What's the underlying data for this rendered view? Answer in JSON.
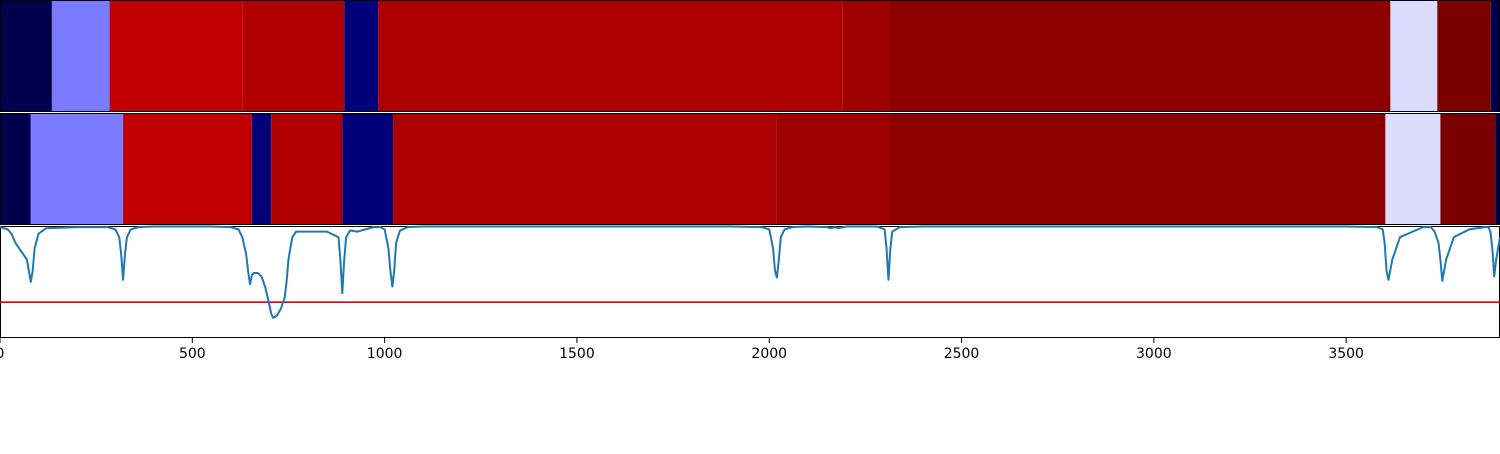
{
  "chart_data": {
    "type": "heatmap",
    "title": "",
    "xlabel": "",
    "ylabel": "",
    "xlim": [
      0,
      3900
    ],
    "x_ticks": [
      "0",
      "500",
      "1000",
      "1500",
      "2000",
      "2500",
      "3000",
      "3500"
    ],
    "x_tick_values": [
      0,
      500,
      1000,
      1500,
      2000,
      2500,
      3000,
      3500
    ],
    "grid": false,
    "legend": "none",
    "segment_rows": [
      {
        "segments": [
          {
            "start": 0,
            "end": 135,
            "color": "#00004c"
          },
          {
            "start": 135,
            "end": 285,
            "color": "#7b7bff"
          },
          {
            "start": 285,
            "end": 630,
            "color": "#c00000"
          },
          {
            "start": 630,
            "end": 895,
            "color": "#b00000"
          },
          {
            "start": 895,
            "end": 983,
            "color": "#00007a"
          },
          {
            "start": 983,
            "end": 2190,
            "color": "#ac0000"
          },
          {
            "start": 2190,
            "end": 2310,
            "color": "#9e0000"
          },
          {
            "start": 2310,
            "end": 3615,
            "color": "#8e0000"
          },
          {
            "start": 3615,
            "end": 3737,
            "color": "#dcdcff"
          },
          {
            "start": 3737,
            "end": 3876,
            "color": "#7a0000"
          },
          {
            "start": 3876,
            "end": 3900,
            "color": "#00004c"
          }
        ]
      },
      {
        "segments": [
          {
            "start": 0,
            "end": 80,
            "color": "#00004c"
          },
          {
            "start": 80,
            "end": 320,
            "color": "#7b7bff"
          },
          {
            "start": 320,
            "end": 655,
            "color": "#c00000"
          },
          {
            "start": 655,
            "end": 705,
            "color": "#00007a"
          },
          {
            "start": 705,
            "end": 890,
            "color": "#b00000"
          },
          {
            "start": 890,
            "end": 1022,
            "color": "#00007a"
          },
          {
            "start": 1022,
            "end": 2020,
            "color": "#ac0000"
          },
          {
            "start": 2020,
            "end": 2310,
            "color": "#9e0000"
          },
          {
            "start": 2310,
            "end": 3602,
            "color": "#8e0000"
          },
          {
            "start": 3602,
            "end": 3745,
            "color": "#dcdcff"
          },
          {
            "start": 3745,
            "end": 3888,
            "color": "#7a0000"
          },
          {
            "start": 3888,
            "end": 3900,
            "color": "#00004c"
          }
        ]
      }
    ],
    "line_panel": {
      "ylim": [
        0,
        1
      ],
      "series_color": "#1f77b4",
      "threshold": 0.32,
      "threshold_color": "#e00000",
      "x": [
        0,
        20,
        30,
        40,
        50,
        60,
        70,
        75,
        80,
        85,
        90,
        100,
        120,
        200,
        280,
        300,
        310,
        315,
        320,
        325,
        330,
        340,
        360,
        400,
        450,
        500,
        550,
        600,
        620,
        630,
        640,
        645,
        650,
        655,
        660,
        670,
        680,
        690,
        700,
        705,
        710,
        720,
        730,
        740,
        745,
        750,
        760,
        770,
        800,
        850,
        880,
        885,
        890,
        895,
        900,
        910,
        930,
        950,
        970,
        990,
        1000,
        1010,
        1015,
        1020,
        1025,
        1030,
        1040,
        1060,
        1100,
        1500,
        1900,
        1980,
        2000,
        2010,
        2015,
        2020,
        2025,
        2030,
        2040,
        2060,
        2100,
        2150,
        2160,
        2170,
        2180,
        2200,
        2280,
        2300,
        2305,
        2310,
        2315,
        2320,
        2340,
        2400,
        3000,
        3500,
        3580,
        3595,
        3600,
        3605,
        3610,
        3620,
        3640,
        3700,
        3720,
        3730,
        3740,
        3745,
        3750,
        3760,
        3780,
        3820,
        3860,
        3870,
        3875,
        3880,
        3885,
        3890,
        3900
      ],
      "y": [
        0.99,
        0.97,
        0.93,
        0.85,
        0.8,
        0.75,
        0.7,
        0.6,
        0.5,
        0.6,
        0.8,
        0.93,
        0.98,
        0.99,
        0.99,
        0.97,
        0.9,
        0.75,
        0.52,
        0.75,
        0.9,
        0.97,
        0.99,
        0.995,
        0.995,
        0.995,
        0.995,
        0.99,
        0.97,
        0.9,
        0.75,
        0.6,
        0.48,
        0.56,
        0.58,
        0.58,
        0.55,
        0.45,
        0.3,
        0.22,
        0.18,
        0.2,
        0.26,
        0.36,
        0.5,
        0.7,
        0.9,
        0.95,
        0.95,
        0.95,
        0.9,
        0.7,
        0.4,
        0.7,
        0.9,
        0.96,
        0.95,
        0.97,
        0.99,
        0.99,
        0.97,
        0.8,
        0.6,
        0.46,
        0.6,
        0.85,
        0.96,
        0.99,
        0.995,
        0.995,
        0.995,
        0.99,
        0.97,
        0.8,
        0.6,
        0.54,
        0.7,
        0.9,
        0.97,
        0.99,
        0.995,
        0.99,
        0.98,
        0.99,
        0.98,
        0.995,
        0.995,
        0.97,
        0.8,
        0.52,
        0.8,
        0.95,
        0.99,
        0.995,
        0.995,
        0.995,
        0.99,
        0.97,
        0.85,
        0.6,
        0.52,
        0.7,
        0.9,
        0.99,
        0.99,
        0.95,
        0.85,
        0.7,
        0.51,
        0.7,
        0.9,
        0.97,
        0.99,
        0.99,
        0.95,
        0.8,
        0.55,
        0.7,
        0.9,
        0.97
      ]
    }
  }
}
